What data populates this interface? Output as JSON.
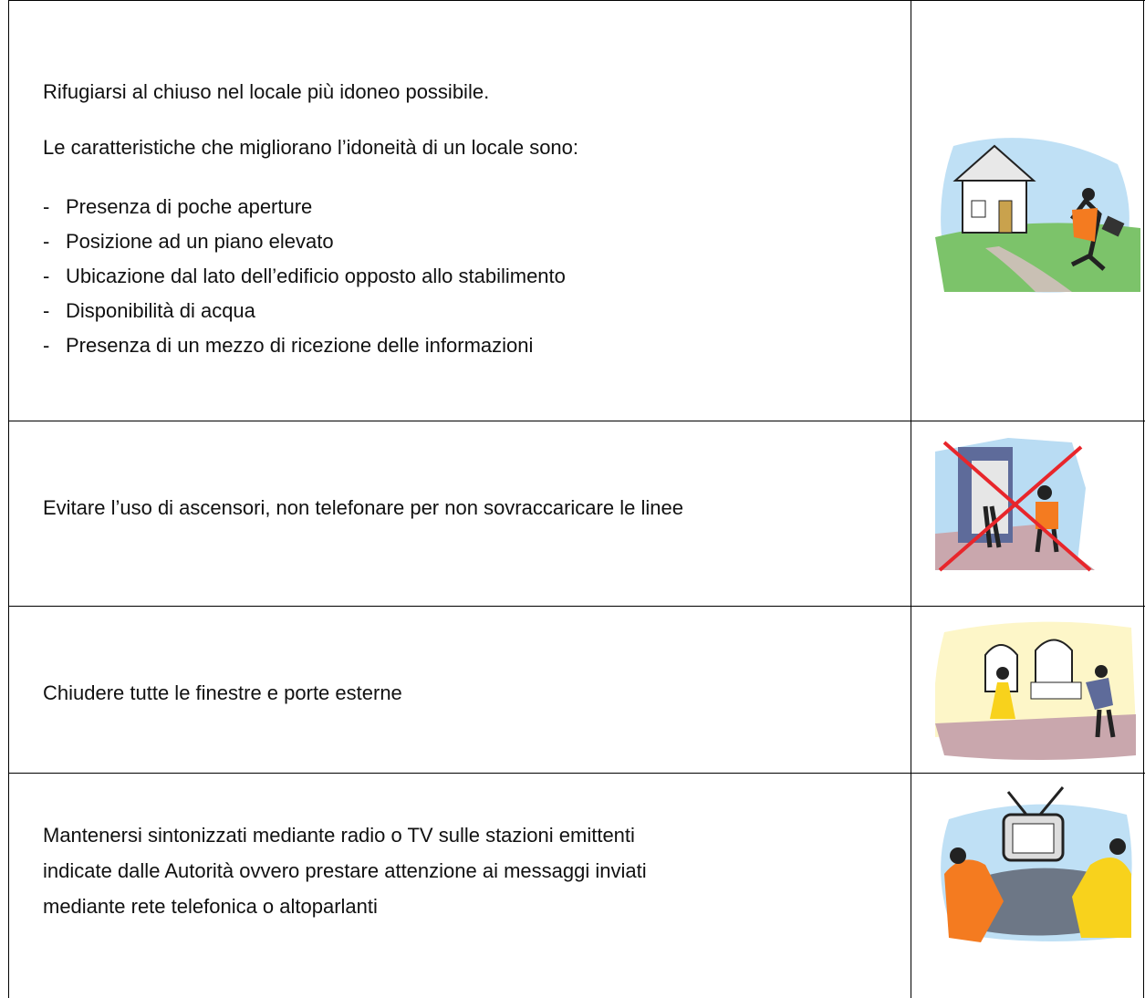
{
  "table": {
    "rows": [
      {
        "text": [
          "Rifugiarsi al chiuso nel locale più idoneo possibile.",
          "Le caratteristiche che migliorano l’idoneità di un locale sono:"
        ],
        "list_marker": "-",
        "items": [
          "Presenza di poche aperture",
          "Posizione ad un piano elevato",
          "Ubicazione dal lato dell’edificio opposto allo stabilimento",
          "Disponibilità di acqua",
          "Presenza di un mezzo di ricezione delle informazioni"
        ]
      },
      {
        "text": [
          "Evitare l’uso di ascensori, non telefonare per non sovraccaricare le linee"
        ]
      },
      {
        "text": [
          "Chiudere tutte le finestre e porte esterne"
        ]
      },
      {
        "text": [
          "Mantenersi sintonizzati mediante radio o TV sulle stazioni emittenti",
          "indicate dalle Autorità ovvero prestare attenzione ai messaggi inviati",
          "mediante rete telefonica o altoparlanti"
        ]
      }
    ]
  }
}
